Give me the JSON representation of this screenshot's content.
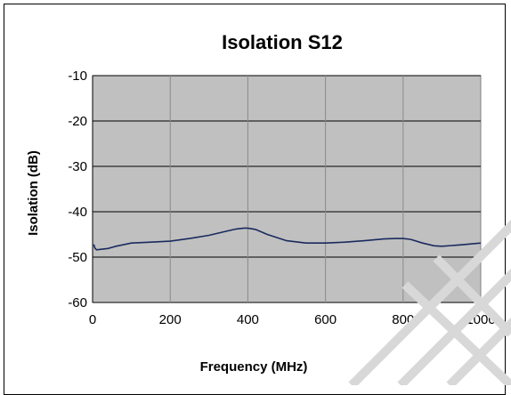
{
  "chart_data": {
    "type": "line",
    "title": "Isolation S12",
    "xlabel": "Frequency (MHz)",
    "ylabel": "Isolation  (dB)",
    "xlim": [
      0,
      1000
    ],
    "ylim": [
      -60,
      -10
    ],
    "xticks": [
      0,
      200,
      400,
      600,
      800,
      1000
    ],
    "yticks": [
      -10,
      -20,
      -30,
      -40,
      -50,
      -60
    ],
    "xtick_labels": [
      "0",
      "200",
      "400",
      "600",
      "800",
      "1000"
    ],
    "ytick_labels": [
      "-10",
      "-20",
      "-30",
      "-40",
      "-50",
      "-60"
    ],
    "grid": true,
    "legend": "none",
    "plot_background": "#c0c0c0",
    "line_color": "#1a2a5e",
    "series": [
      {
        "x": [
          3,
          6,
          10,
          20,
          40,
          60,
          100,
          150,
          200,
          250,
          300,
          340,
          370,
          390,
          400,
          420,
          450,
          500,
          550,
          600,
          650,
          700,
          750,
          780,
          800,
          820,
          850,
          880,
          900,
          950,
          1000
        ],
        "y": [
          -47.2,
          -48.0,
          -48.4,
          -48.3,
          -48.1,
          -47.6,
          -46.9,
          -46.7,
          -46.5,
          -45.9,
          -45.2,
          -44.4,
          -43.8,
          -43.6,
          -43.6,
          -43.9,
          -45.0,
          -46.4,
          -46.9,
          -46.9,
          -46.7,
          -46.4,
          -46.0,
          -45.9,
          -45.9,
          -46.1,
          -46.9,
          -47.5,
          -47.6,
          -47.3,
          -46.9
        ]
      }
    ]
  }
}
